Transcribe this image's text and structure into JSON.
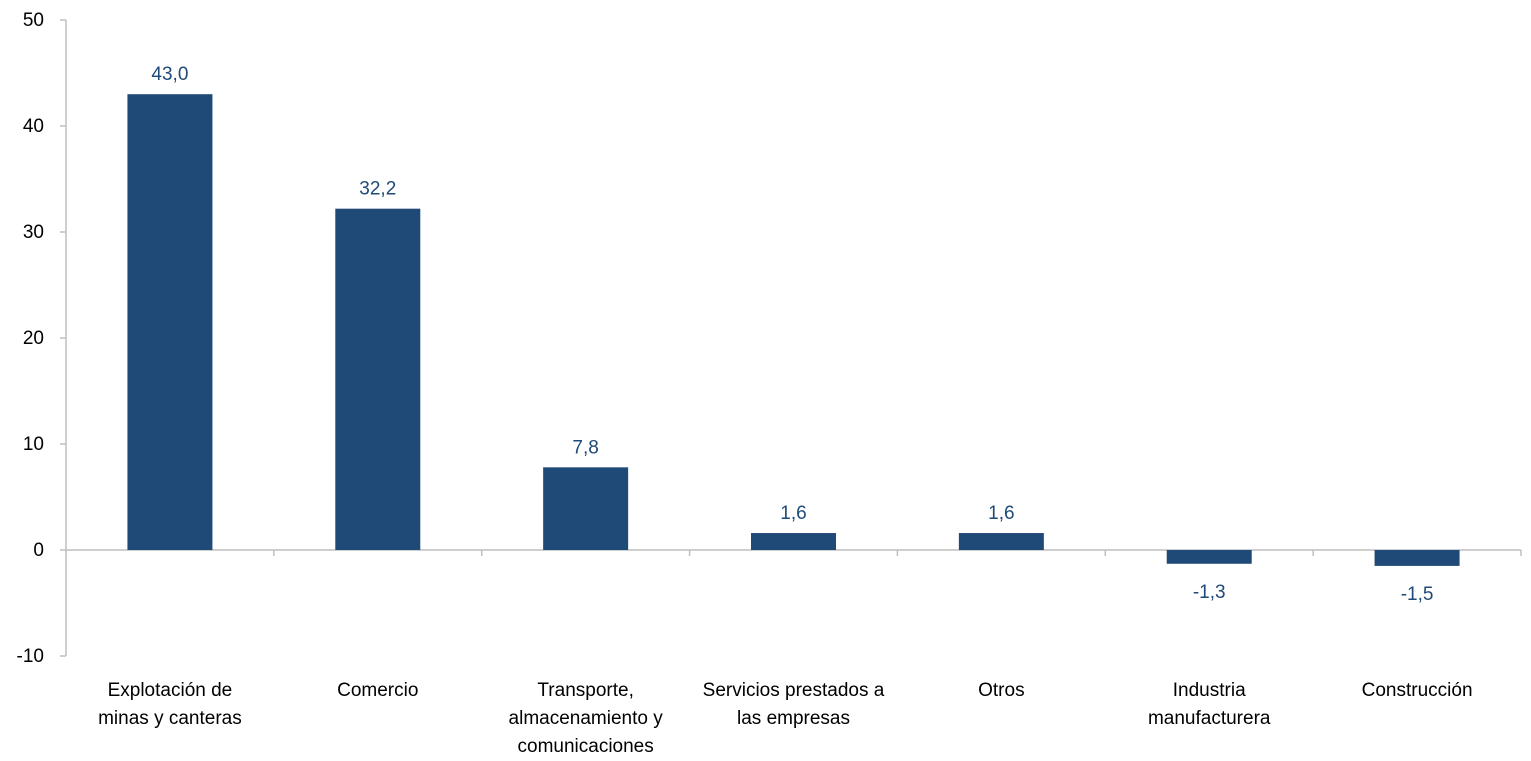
{
  "chart_data": {
    "type": "bar",
    "title": "",
    "xlabel": "",
    "ylabel": "",
    "ylim": [
      -10,
      50
    ],
    "yticks": [
      -10,
      0,
      10,
      20,
      30,
      40,
      50
    ],
    "grid": false,
    "legend": "none",
    "categories": [
      [
        "Explotación de",
        "minas y canteras"
      ],
      [
        "Comercio"
      ],
      [
        "Transporte,",
        "almacenamiento y",
        "comunicaciones"
      ],
      [
        "Servicios prestados a",
        "las empresas"
      ],
      [
        "Otros"
      ],
      [
        "Industria",
        "manufacturera"
      ],
      [
        "Construcción"
      ]
    ],
    "values": [
      43.0,
      32.2,
      7.8,
      1.6,
      1.6,
      -1.3,
      -1.5
    ],
    "value_labels": [
      "43,0",
      "32,2",
      "7,8",
      "1,6",
      "1,6",
      "-1,3",
      "-1,5"
    ],
    "bar_color": "#1F4A78",
    "label_color": "#1F4A78"
  }
}
